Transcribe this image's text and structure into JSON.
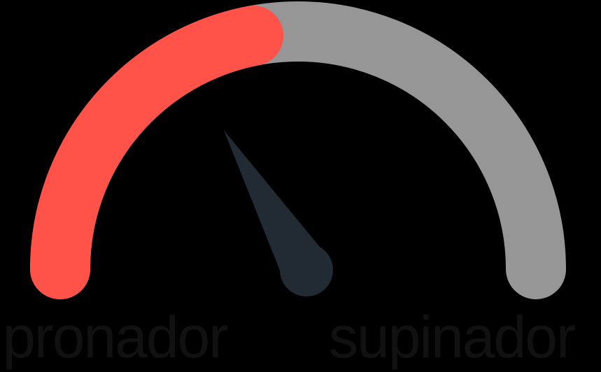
{
  "gauge": {
    "level": 0.44,
    "needle_fraction": 0.33,
    "filled_color": "#ff534a",
    "track_color": "#969696",
    "needle_color": "#222a33",
    "background_color": "#000000",
    "label_color": "#111111"
  },
  "labels": {
    "left": "pronador",
    "right": "supinador"
  }
}
